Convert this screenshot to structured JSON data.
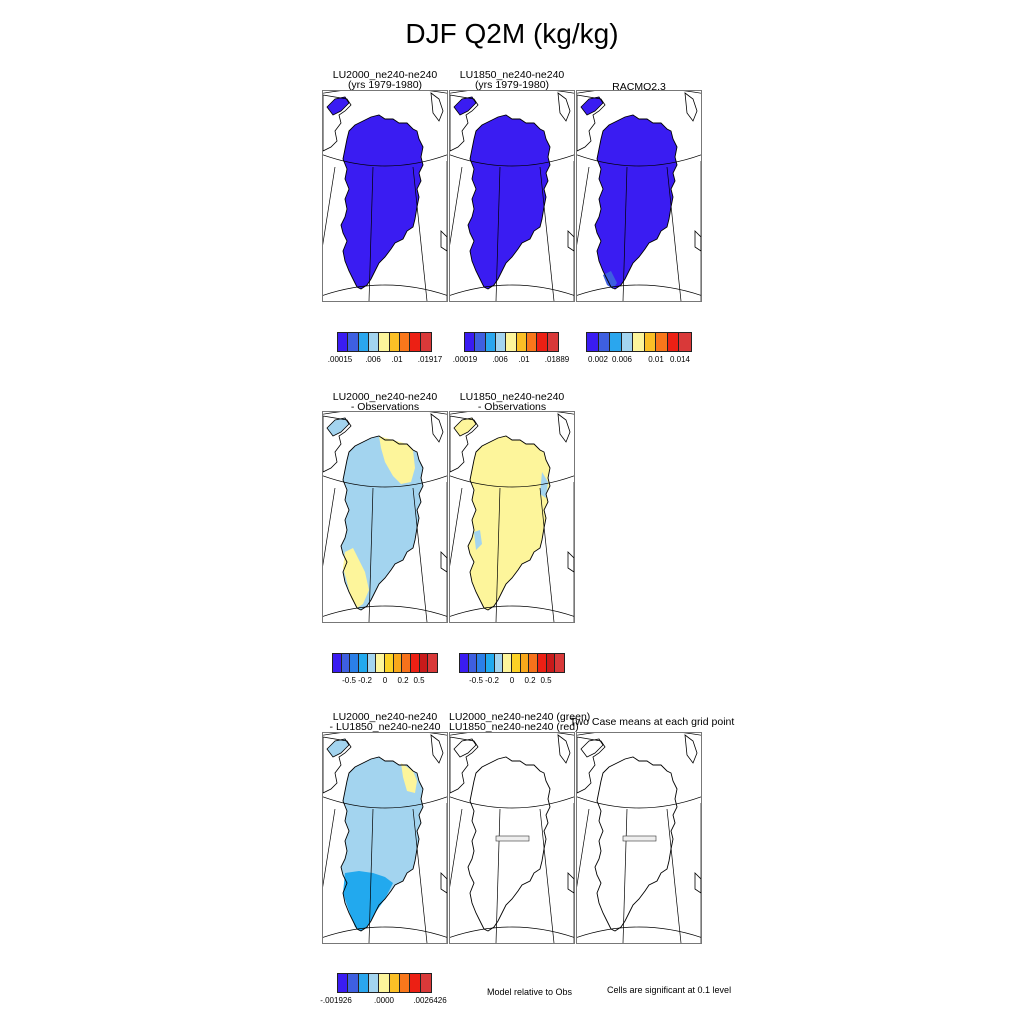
{
  "title": "DJF Q2M (kg/kg)",
  "palettes": {
    "seq": [
      "#3a1cf2",
      "#3e5fe0",
      "#2aa6ee",
      "#a3d4ef",
      "#fdf59b",
      "#fbbf26",
      "#f9771b",
      "#ec2014",
      "#d93939"
    ],
    "diff": [
      "#3a1cf2",
      "#3e5fe0",
      "#2b7fe8",
      "#22a9ee",
      "#a3d4ef",
      "#fdf59b",
      "#fcd226",
      "#f9a81b",
      "#f6721b",
      "#ec2014",
      "#c81a1a",
      "#d93939"
    ]
  },
  "row1": {
    "panels": [
      {
        "title1": "LU2000_ne240-ne240",
        "title2": "(yrs 1979-1980)",
        "fill": "#3a1cf2"
      },
      {
        "title1": "LU1850_ne240-ne240",
        "title2": "(yrs 1979-1980)",
        "fill": "#3a1cf2"
      },
      {
        "title1": "RACMO2.3",
        "title2": "",
        "fill": "#3a1cf2"
      }
    ],
    "colorbars": [
      {
        "labels": [
          ".00015",
          ".006",
          ".01",
          ".01917"
        ]
      },
      {
        "labels": [
          ".00019",
          ".006",
          ".01",
          ".01889"
        ]
      },
      {
        "labels": [
          "0.002",
          "0.006",
          "0.01",
          "0.014"
        ]
      }
    ]
  },
  "row2": {
    "panels": [
      {
        "title1": "LU2000_ne240-ne240",
        "title2": "- Observations",
        "fill": "#a3d4ef",
        "accent": "#fdf59b"
      },
      {
        "title1": "LU1850_ne240-ne240",
        "title2": "- Observations",
        "fill": "#fdf59b",
        "accent": "#a3d4ef"
      }
    ],
    "colorbars": [
      {
        "labels": [
          "-0.5",
          "-0.2",
          "0",
          "0.2",
          "0.5"
        ]
      },
      {
        "labels": [
          "-0.5",
          "-0.2",
          "0",
          "0.2",
          "0.5"
        ]
      }
    ]
  },
  "row3": {
    "panels": [
      {
        "title1": "LU2000_ne240-ne240",
        "title2": "- LU1850_ne240-ne240",
        "fill": "#a3d4ef",
        "accent": "#fdf59b",
        "edge": "#22a9ee"
      },
      {
        "title1": "LU2000_ne240-ne240 (green)",
        "title2": "LU1850_ne240-ne240 (red)"
      },
      {
        "title1": "Two Case means at each grid point",
        "title2": ""
      }
    ],
    "colorbar": {
      "labels": [
        "-.001926",
        ".0000",
        ".0026426"
      ]
    },
    "note_model": "Model relative to Obs",
    "note_signif": "Cells are significant at 0.1 level"
  }
}
